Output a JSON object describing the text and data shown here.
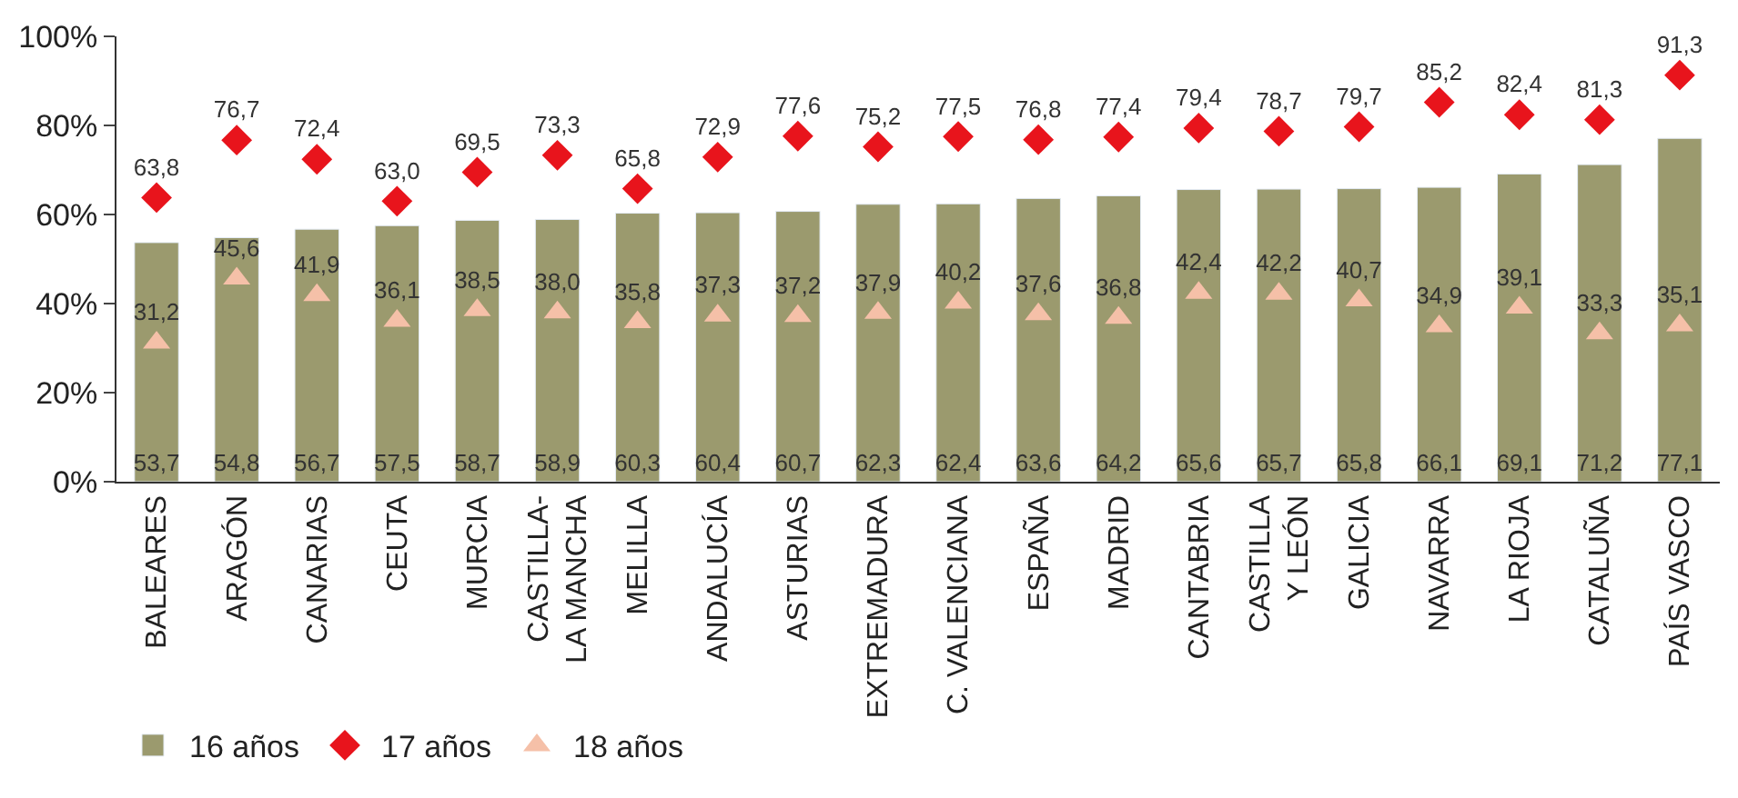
{
  "chart_data": {
    "type": "bar",
    "categories": [
      "BALEARES",
      "ARAGÓN",
      "CANARIAS",
      "CEUTA",
      "MURCIA",
      "CASTILLA-\nLA MANCHA",
      "MELILLA",
      "ANDALUCÍA",
      "ASTURIAS",
      "EXTREMADURA",
      "C. VALENCIANA",
      "ESPAÑA",
      "MADRID",
      "CANTABRIA",
      "CASTILLA\nY LEÓN",
      "GALICIA",
      "NAVARRA",
      "LA RIOJA",
      "CATALUÑA",
      "PAÍS VASCO"
    ],
    "series": [
      {
        "name": "16 años",
        "color": "#9b9a6e",
        "values": [
          53.7,
          54.8,
          56.7,
          57.5,
          58.7,
          58.9,
          60.3,
          60.4,
          60.7,
          62.3,
          62.4,
          63.6,
          64.2,
          65.6,
          65.7,
          65.8,
          66.1,
          69.1,
          71.2,
          77.1
        ],
        "value_labels": [
          "53,7",
          "54,8",
          "56,7",
          "57,5",
          "58,7",
          "58,9",
          "60,3",
          "60,4",
          "60,7",
          "62,3",
          "62,4",
          "63,6",
          "64,2",
          "65,6",
          "65,7",
          "65,8",
          "66,1",
          "69,1",
          "71,2",
          "77,1"
        ]
      },
      {
        "name": "17 años",
        "type": "scatter",
        "marker": "diamond",
        "color": "#e8141c",
        "values": [
          63.8,
          76.7,
          72.4,
          63.0,
          69.5,
          73.3,
          65.8,
          72.9,
          77.6,
          75.2,
          77.5,
          76.8,
          77.4,
          79.4,
          78.7,
          79.7,
          85.2,
          82.4,
          81.3,
          91.3
        ],
        "value_labels": [
          "63,8",
          "76,7",
          "72,4",
          "63,0",
          "69,5",
          "73,3",
          "65,8",
          "72,9",
          "77,6",
          "75,2",
          "77,5",
          "76,8",
          "77,4",
          "79,4",
          "78,7",
          "79,7",
          "85,2",
          "82,4",
          "81,3",
          "91,3"
        ]
      },
      {
        "name": "18 años",
        "type": "scatter",
        "marker": "triangle",
        "color": "#f5c0a8",
        "values": [
          31.2,
          45.6,
          41.9,
          36.1,
          38.5,
          38.0,
          35.8,
          37.3,
          37.2,
          37.9,
          40.2,
          37.6,
          36.8,
          42.4,
          42.2,
          40.7,
          34.9,
          39.1,
          33.3,
          35.1
        ],
        "value_labels": [
          "31,2",
          "45,6",
          "41,9",
          "36,1",
          "38,5",
          "38,0",
          "35,8",
          "37,3",
          "37,2",
          "37,9",
          "40,2",
          "37,6",
          "36,8",
          "42,4",
          "42,2",
          "40,7",
          "34,9",
          "39,1",
          "33,3",
          "35,1"
        ]
      }
    ],
    "ylim": [
      0,
      100
    ],
    "yticks": [
      {
        "value": 0,
        "label": "0%"
      },
      {
        "value": 20,
        "label": "20%"
      },
      {
        "value": 40,
        "label": "40%"
      },
      {
        "value": 60,
        "label": "60%"
      },
      {
        "value": 80,
        "label": "80%"
      },
      {
        "value": 100,
        "label": "100%"
      }
    ],
    "grid": false,
    "legend": "bottom"
  }
}
